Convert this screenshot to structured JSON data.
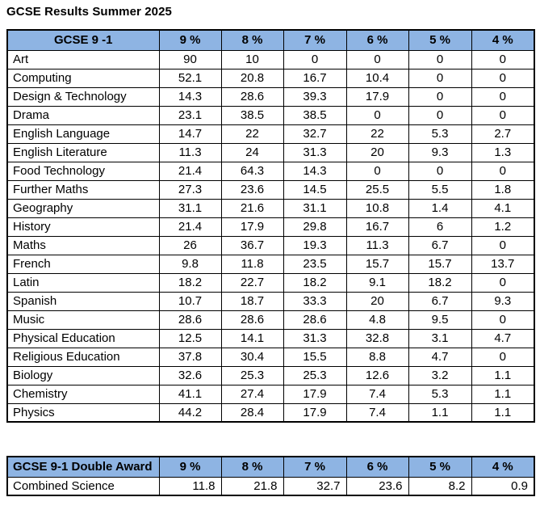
{
  "title": "GCSE Results Summer 2025",
  "colors": {
    "header_bg": "#8EB4E3",
    "border": "#000000",
    "text": "#000000"
  },
  "main_table": {
    "header": [
      "GCSE 9 -1",
      "9 %",
      "8 %",
      "7 %",
      "6 %",
      "5 %",
      "4 %"
    ],
    "rows": [
      {
        "subject": "Art",
        "values": [
          "90",
          "10",
          "0",
          "0",
          "0",
          "0"
        ]
      },
      {
        "subject": "Computing",
        "values": [
          "52.1",
          "20.8",
          "16.7",
          "10.4",
          "0",
          "0"
        ]
      },
      {
        "subject": "Design & Technology",
        "values": [
          "14.3",
          "28.6",
          "39.3",
          "17.9",
          "0",
          "0"
        ]
      },
      {
        "subject": "Drama",
        "values": [
          "23.1",
          "38.5",
          "38.5",
          "0",
          "0",
          "0"
        ]
      },
      {
        "subject": "English Language",
        "values": [
          "14.7",
          "22",
          "32.7",
          "22",
          "5.3",
          "2.7"
        ]
      },
      {
        "subject": "English Literature",
        "values": [
          "11.3",
          "24",
          "31.3",
          "20",
          "9.3",
          "1.3"
        ]
      },
      {
        "subject": "Food Technology",
        "values": [
          "21.4",
          "64.3",
          "14.3",
          "0",
          "0",
          "0"
        ]
      },
      {
        "subject": "Further Maths",
        "values": [
          "27.3",
          "23.6",
          "14.5",
          "25.5",
          "5.5",
          "1.8"
        ]
      },
      {
        "subject": "Geography",
        "values": [
          "31.1",
          "21.6",
          "31.1",
          "10.8",
          "1.4",
          "4.1"
        ]
      },
      {
        "subject": "History",
        "values": [
          "21.4",
          "17.9",
          "29.8",
          "16.7",
          "6",
          "1.2"
        ]
      },
      {
        "subject": "Maths",
        "values": [
          "26",
          "36.7",
          "19.3",
          "11.3",
          "6.7",
          "0"
        ]
      },
      {
        "subject": "French",
        "values": [
          "9.8",
          "11.8",
          "23.5",
          "15.7",
          "15.7",
          "13.7"
        ]
      },
      {
        "subject": "Latin",
        "values": [
          "18.2",
          "22.7",
          "18.2",
          "9.1",
          "18.2",
          "0"
        ]
      },
      {
        "subject": "Spanish",
        "values": [
          "10.7",
          "18.7",
          "33.3",
          "20",
          "6.7",
          "9.3"
        ]
      },
      {
        "subject": "Music",
        "values": [
          "28.6",
          "28.6",
          "28.6",
          "4.8",
          "9.5",
          "0"
        ]
      },
      {
        "subject": "Physical Education",
        "values": [
          "12.5",
          "14.1",
          "31.3",
          "32.8",
          "3.1",
          "4.7"
        ]
      },
      {
        "subject": "Religious Education",
        "values": [
          "37.8",
          "30.4",
          "15.5",
          "8.8",
          "4.7",
          "0"
        ]
      },
      {
        "subject": "Biology",
        "values": [
          "32.6",
          "25.3",
          "25.3",
          "12.6",
          "3.2",
          "1.1"
        ]
      },
      {
        "subject": "Chemistry",
        "values": [
          "41.1",
          "27.4",
          "17.9",
          "7.4",
          "5.3",
          "1.1"
        ]
      },
      {
        "subject": "Physics",
        "values": [
          "44.2",
          "28.4",
          "17.9",
          "7.4",
          "1.1",
          "1.1"
        ]
      }
    ]
  },
  "double_award_table": {
    "header": [
      "GCSE 9-1 Double Award",
      "9 %",
      "8 %",
      "7 %",
      "6 %",
      "5 %",
      "4 %"
    ],
    "rows": [
      {
        "subject": "Combined Science",
        "values": [
          "11.8",
          "21.8",
          "32.7",
          "23.6",
          "8.2",
          "0.9"
        ]
      }
    ]
  }
}
